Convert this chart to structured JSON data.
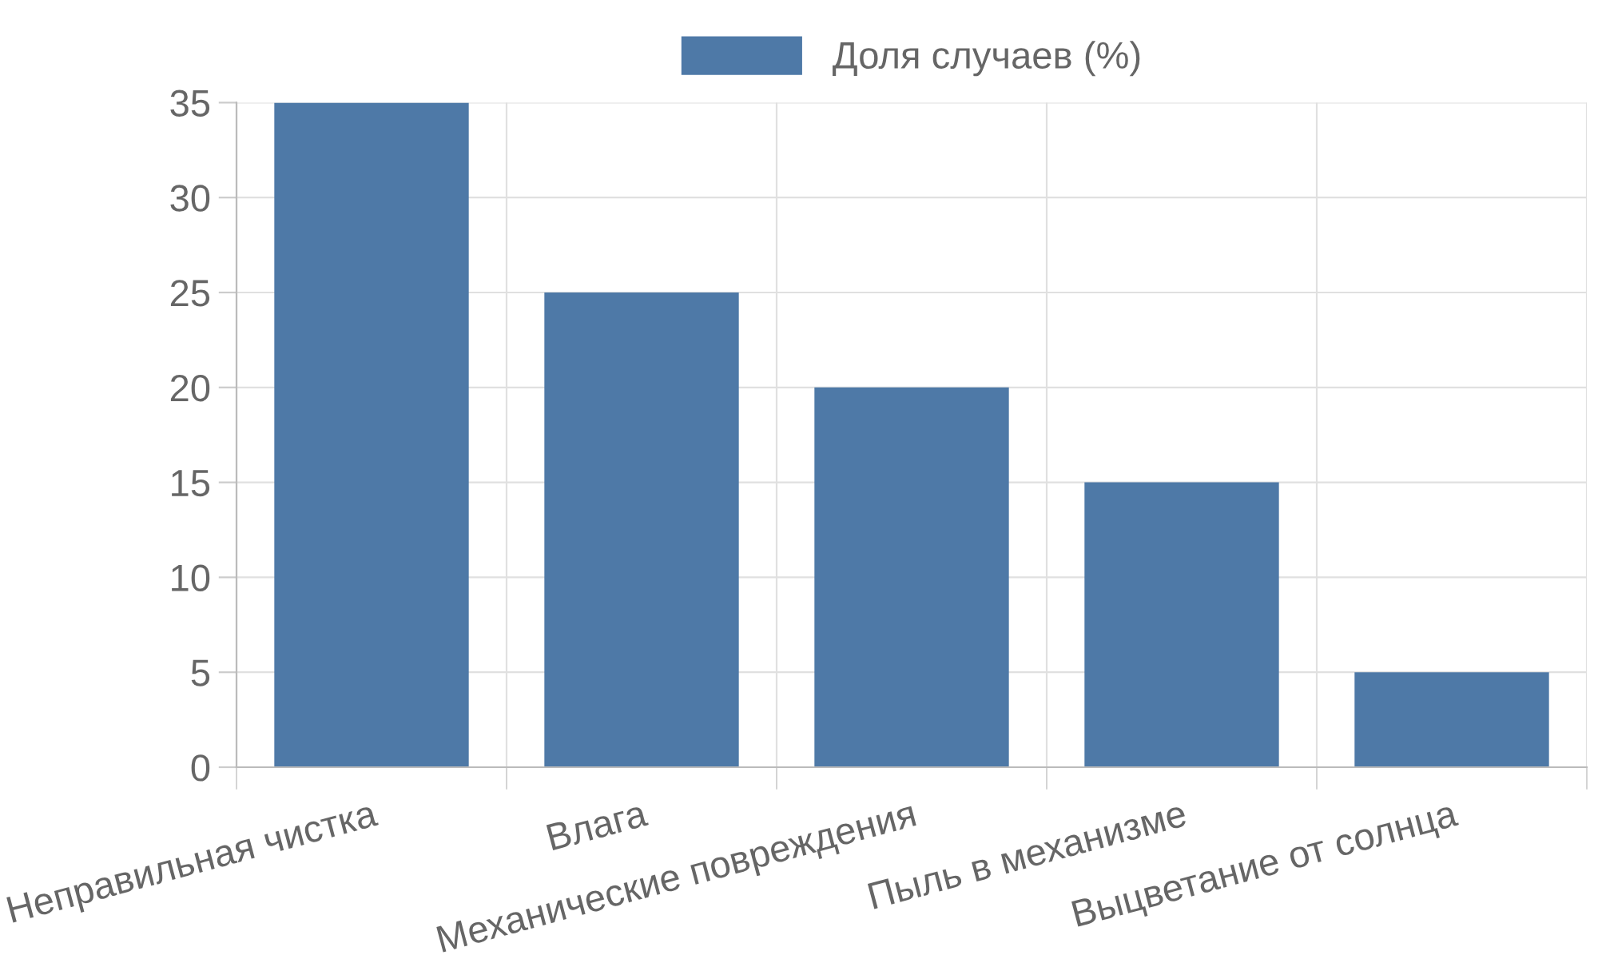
{
  "chart_data": {
    "type": "bar",
    "categories": [
      "Неправильная чистка",
      "Влага",
      "Механические повреждения",
      "Пыль в механизме",
      "Выцветание от солнца"
    ],
    "series": [
      {
        "name": "Доля случаев (%)",
        "color": "#4e79a7",
        "values": [
          35,
          25,
          20,
          15,
          5
        ]
      }
    ],
    "ylim": [
      0,
      35
    ],
    "yticks": [
      0,
      5,
      10,
      15,
      20,
      25,
      30,
      35
    ],
    "grid": true,
    "legend": "top"
  }
}
